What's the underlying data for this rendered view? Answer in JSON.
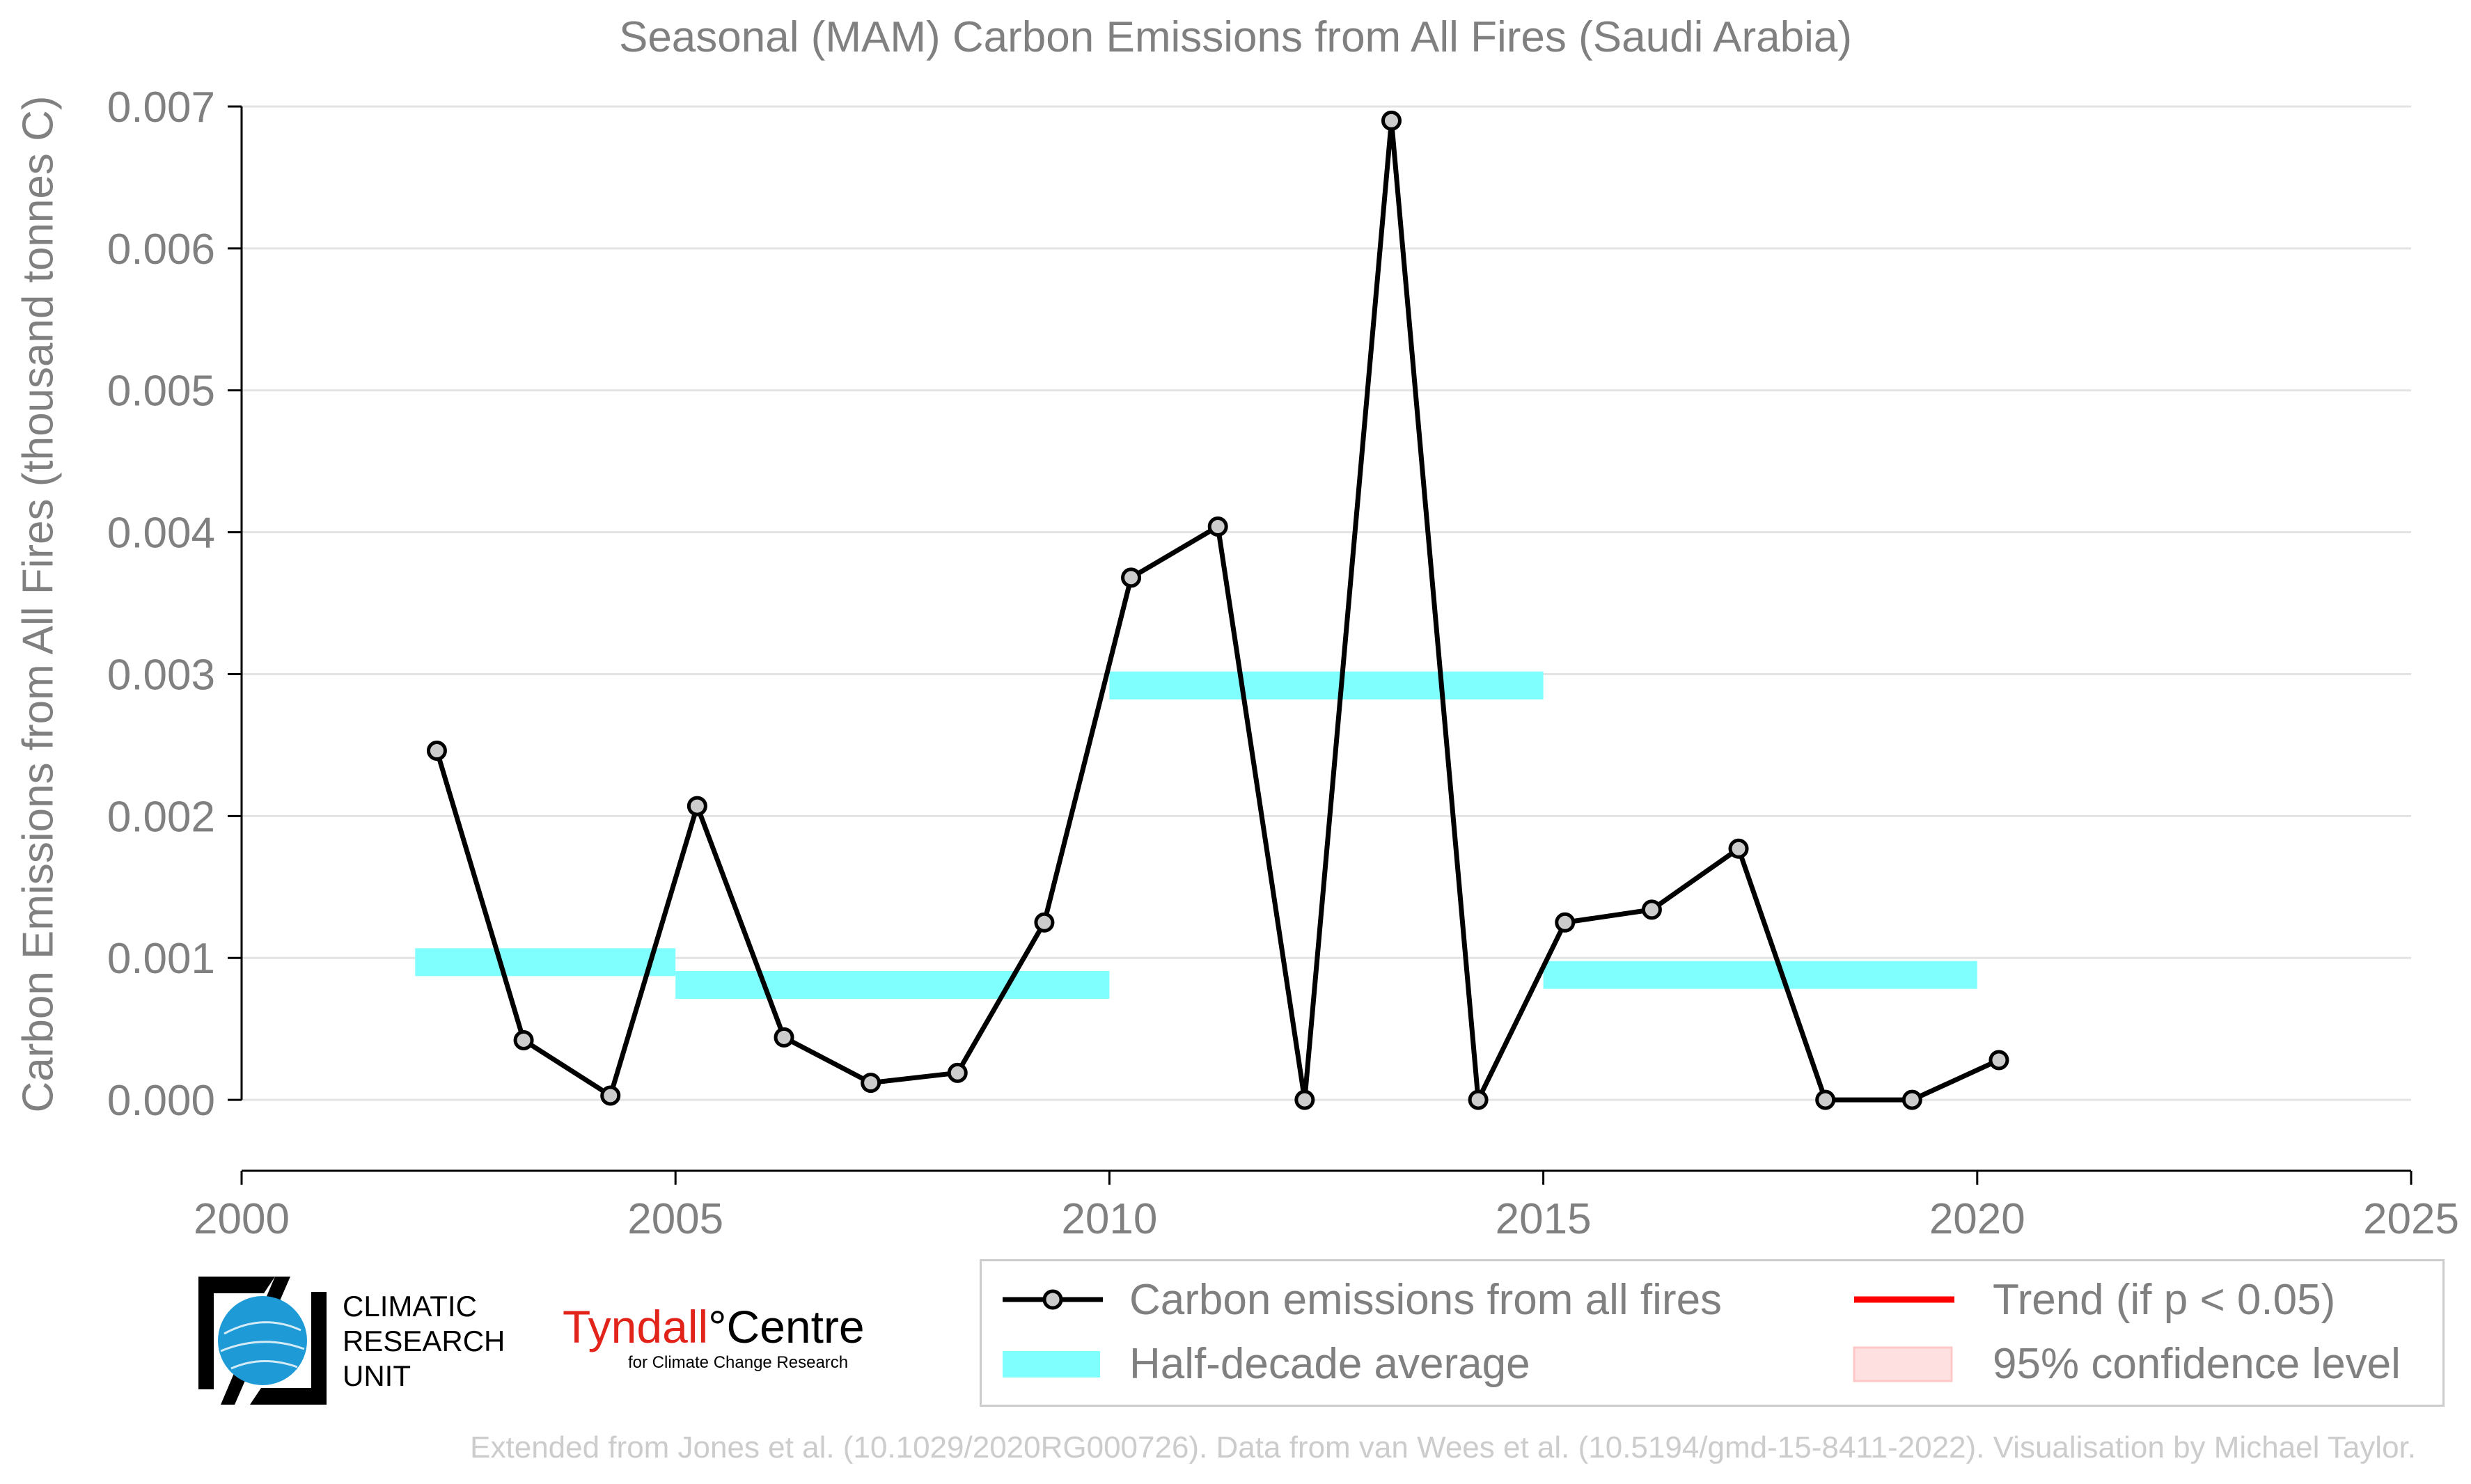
{
  "chart_data": {
    "type": "line",
    "title": "Seasonal (MAM) Carbon Emissions from All Fires (Saudi Arabia)",
    "ylabel": "Carbon Emissions from All Fires (thousand tonnes C)",
    "xlabel": "",
    "xlim": [
      2000,
      2025
    ],
    "ylim": [
      -0.0005,
      0.007
    ],
    "x_ticks": [
      "2000",
      "2005",
      "2010",
      "2015",
      "2020",
      "2025"
    ],
    "y_ticks": [
      "0.000",
      "0.001",
      "0.002",
      "0.003",
      "0.004",
      "0.005",
      "0.006",
      "0.007"
    ],
    "grid": "horizontal",
    "series": [
      {
        "name": "Carbon emissions from all fires",
        "color": "#000000",
        "marker_color": "#cccccc",
        "x": [
          2002.25,
          2003.25,
          2004.25,
          2005.25,
          2006.25,
          2007.25,
          2008.25,
          2009.25,
          2010.25,
          2011.25,
          2012.25,
          2013.25,
          2014.25,
          2015.25,
          2016.25,
          2017.25,
          2018.25,
          2019.25,
          2020.25
        ],
        "values": [
          0.00246,
          0.00042,
          3e-05,
          0.00207,
          0.00044,
          0.00012,
          0.00019,
          0.00125,
          0.00368,
          0.00404,
          0.0,
          0.0069,
          0.0,
          0.00125,
          0.00134,
          0.00177,
          0.0,
          0.0,
          0.00028
        ]
      }
    ],
    "half_decade_average": {
      "name": "Half-decade average",
      "color": "#80ffff",
      "segments": [
        {
          "x0": 2002,
          "x1": 2005,
          "value": 0.00097
        },
        {
          "x0": 2005,
          "x1": 2010,
          "value": 0.00081
        },
        {
          "x0": 2010,
          "x1": 2015,
          "value": 0.00292
        },
        {
          "x0": 2015,
          "x1": 2020,
          "value": 0.00088
        }
      ]
    },
    "legend": {
      "placement": "bottom",
      "entries": [
        {
          "label": "Carbon emissions from all fires",
          "color": "#000000"
        },
        {
          "label": "Trend (if p < 0.05)",
          "color": "#ff0000"
        },
        {
          "label": "Half-decade average",
          "color": "#80ffff"
        },
        {
          "label": "95% confidence level",
          "color": "#ffe0e0"
        }
      ]
    }
  },
  "logos": {
    "cru_text": [
      "CLIMATIC",
      "RESEARCH",
      "UNIT"
    ],
    "tyndall_main_1": "Tyndall",
    "tyndall_main_2": "°Centre",
    "tyndall_sub": "for Climate Change Research"
  },
  "footer": "Extended from Jones et al. (10.1029/2020RG000726). Data from van Wees et al. (10.5194/gmd-15-8411-2022). Visualisation by Michael Taylor."
}
